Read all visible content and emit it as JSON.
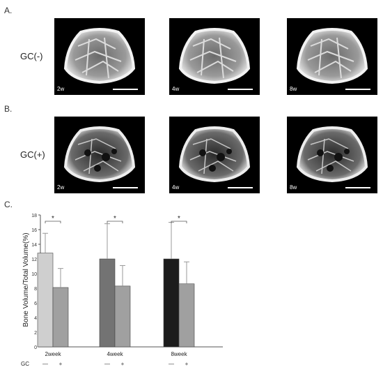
{
  "panels": {
    "a_label": "A.",
    "b_label": "B.",
    "c_label": "C."
  },
  "rows": [
    {
      "label": "GC(-)",
      "timepoints": [
        "2w",
        "4w",
        "8w"
      ]
    },
    {
      "label": "GC(+)",
      "timepoints": [
        "2w",
        "4w",
        "8w"
      ]
    }
  ],
  "chart_data": {
    "type": "bar",
    "categories": [
      "2week",
      "4week",
      "8week"
    ],
    "series": [
      {
        "values": [
          12.8,
          12.0,
          12.0
        ],
        "errors": [
          2.7,
          4.8,
          5.0
        ],
        "colors": [
          "#cfcfcf",
          "#737373",
          "#1c1c1c"
        ]
      },
      {
        "values": [
          8.1,
          8.3,
          8.6
        ],
        "errors": [
          2.6,
          2.8,
          3.0
        ],
        "colors": [
          "#a0a0a0",
          "#a0a0a0",
          "#a0a0a0"
        ]
      }
    ],
    "ylabel": "Bone Volume/Total Volume(%)",
    "yticks": [
      0,
      2,
      4,
      6,
      8,
      10,
      12,
      14,
      16,
      18
    ],
    "ylim": [
      0,
      18
    ],
    "xsub_label": "GC",
    "xsub_ticks": [
      "—",
      "+"
    ],
    "significance": [
      "*",
      "*",
      "*"
    ],
    "grid": false
  }
}
